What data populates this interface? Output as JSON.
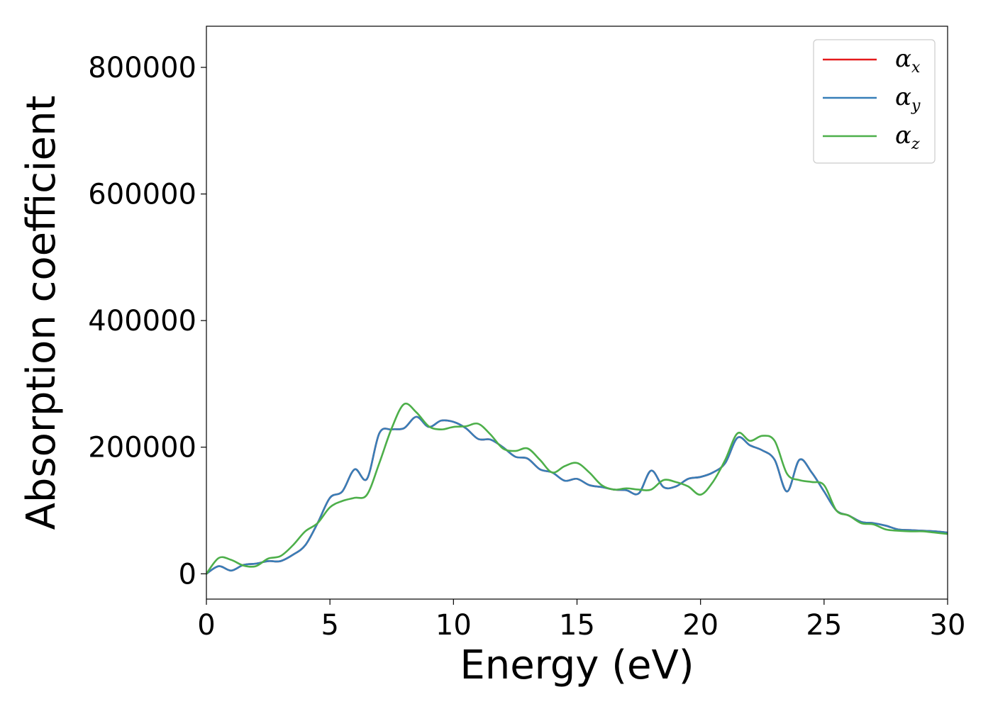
{
  "chart_data": {
    "type": "line",
    "xlabel": "Energy (eV)",
    "ylabel": "Absorption coefficient",
    "xlim": [
      0,
      30
    ],
    "ylim": [
      -40000,
      865000
    ],
    "xticks": [
      0,
      5,
      10,
      15,
      20,
      25,
      30
    ],
    "xtick_labels": [
      "0",
      "5",
      "10",
      "15",
      "20",
      "25",
      "30"
    ],
    "yticks": [
      0,
      200000,
      400000,
      600000,
      800000
    ],
    "ytick_labels": [
      "0",
      "200000",
      "400000",
      "600000",
      "800000"
    ],
    "grid": false,
    "legend_position": "top-right",
    "series": [
      {
        "name": "x",
        "color": "#e41a1c",
        "x": [
          0,
          0.5,
          1,
          1.5,
          2,
          2.5,
          3,
          3.5,
          4,
          4.5,
          5,
          5.5,
          6,
          6.5,
          7,
          7.5,
          8,
          8.5,
          9,
          9.5,
          10,
          10.5,
          11,
          11.5,
          12,
          12.5,
          13,
          13.5,
          14,
          14.5,
          15,
          15.5,
          16,
          16.5,
          17,
          17.5,
          18,
          18.5,
          19,
          19.5,
          20,
          20.5,
          21,
          21.5,
          22,
          22.5,
          23,
          23.5,
          24,
          24.5,
          25,
          25.5,
          26,
          26.5,
          27,
          27.5,
          28,
          28.5,
          29,
          29.5,
          30
        ],
        "y": [
          0,
          12000,
          5000,
          14000,
          16000,
          20000,
          20000,
          30000,
          45000,
          80000,
          120000,
          130000,
          165000,
          150000,
          222000,
          228000,
          230000,
          248000,
          232000,
          242000,
          240000,
          230000,
          213000,
          212000,
          200000,
          185000,
          182000,
          165000,
          160000,
          147000,
          150000,
          140000,
          137000,
          133000,
          132000,
          127000,
          163000,
          137000,
          138000,
          150000,
          153000,
          160000,
          175000,
          215000,
          203000,
          195000,
          180000,
          130000,
          180000,
          160000,
          130000,
          100000,
          92000,
          82000,
          80000,
          76000,
          70000,
          69000,
          68000,
          67000,
          65000
        ]
      },
      {
        "name": "y",
        "color": "#377eb8",
        "x": [
          0,
          0.5,
          1,
          1.5,
          2,
          2.5,
          3,
          3.5,
          4,
          4.5,
          5,
          5.5,
          6,
          6.5,
          7,
          7.5,
          8,
          8.5,
          9,
          9.5,
          10,
          10.5,
          11,
          11.5,
          12,
          12.5,
          13,
          13.5,
          14,
          14.5,
          15,
          15.5,
          16,
          16.5,
          17,
          17.5,
          18,
          18.5,
          19,
          19.5,
          20,
          20.5,
          21,
          21.5,
          22,
          22.5,
          23,
          23.5,
          24,
          24.5,
          25,
          25.5,
          26,
          26.5,
          27,
          27.5,
          28,
          28.5,
          29,
          29.5,
          30
        ],
        "y": [
          0,
          12000,
          5000,
          14000,
          16000,
          20000,
          20000,
          30000,
          45000,
          80000,
          120000,
          130000,
          165000,
          150000,
          222000,
          228000,
          230000,
          248000,
          232000,
          242000,
          240000,
          230000,
          213000,
          212000,
          200000,
          185000,
          182000,
          165000,
          160000,
          147000,
          150000,
          140000,
          137000,
          133000,
          132000,
          127000,
          163000,
          137000,
          138000,
          150000,
          153000,
          160000,
          175000,
          215000,
          203000,
          195000,
          180000,
          130000,
          180000,
          160000,
          130000,
          100000,
          92000,
          82000,
          80000,
          76000,
          70000,
          69000,
          68000,
          67000,
          65000
        ]
      },
      {
        "name": "z",
        "color": "#4daf4a",
        "x": [
          0,
          0.5,
          1,
          1.5,
          2,
          2.5,
          3,
          3.5,
          4,
          4.5,
          5,
          5.5,
          6,
          6.5,
          7,
          7.5,
          8,
          8.5,
          9,
          9.5,
          10,
          10.5,
          11,
          11.5,
          12,
          12.5,
          13,
          13.5,
          14,
          14.5,
          15,
          15.5,
          16,
          16.5,
          17,
          17.5,
          18,
          18.5,
          19,
          19.5,
          20,
          20.5,
          21,
          21.5,
          22,
          22.5,
          23,
          23.5,
          24,
          24.5,
          25,
          25.5,
          26,
          26.5,
          27,
          27.5,
          28,
          28.5,
          29,
          29.5,
          30
        ],
        "y": [
          0,
          25000,
          22000,
          13000,
          12000,
          24000,
          28000,
          45000,
          67000,
          80000,
          105000,
          115000,
          120000,
          125000,
          175000,
          230000,
          268000,
          255000,
          233000,
          228000,
          232000,
          233000,
          237000,
          220000,
          198000,
          194000,
          198000,
          180000,
          160000,
          170000,
          175000,
          160000,
          140000,
          133000,
          135000,
          133000,
          133000,
          148000,
          145000,
          138000,
          125000,
          145000,
          180000,
          222000,
          210000,
          218000,
          210000,
          158000,
          148000,
          145000,
          140000,
          100000,
          92000,
          80000,
          78000,
          70000,
          68000,
          67000,
          67000,
          65000,
          63000
        ]
      }
    ],
    "legend": {
      "symbol": "α",
      "entries": [
        "x",
        "y",
        "z"
      ]
    }
  }
}
